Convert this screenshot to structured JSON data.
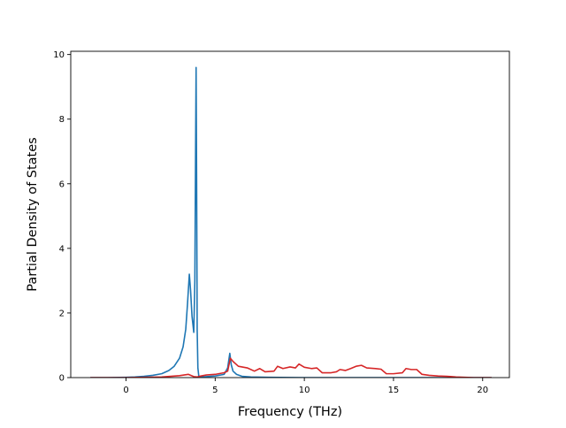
{
  "chart_data": {
    "type": "line",
    "title": "",
    "xlabel": "Frequency (THz)",
    "ylabel": "Partial Density of States",
    "xlim": [
      -3.1,
      21.5
    ],
    "ylim": [
      0,
      10.1
    ],
    "xticks": [
      0,
      5,
      10,
      15,
      20
    ],
    "yticks": [
      0,
      2,
      4,
      6,
      8,
      10
    ],
    "grid": false,
    "legend": "none",
    "series": [
      {
        "color": "#1f77b4",
        "x": [
          -2.0,
          -1.0,
          0.0,
          0.5,
          1.0,
          1.5,
          2.0,
          2.4,
          2.7,
          3.0,
          3.2,
          3.35,
          3.45,
          3.55,
          3.62,
          3.7,
          3.8,
          3.86,
          3.9,
          3.93,
          3.96,
          3.99,
          4.03,
          4.08,
          4.2,
          4.5,
          5.0,
          5.5,
          5.7,
          5.82,
          5.9,
          6.0,
          6.2,
          6.5,
          7.0,
          8.0,
          10.0,
          12.0,
          14.0,
          16.0,
          18.0,
          20.0,
          20.5
        ],
        "y": [
          0.0,
          0.0,
          0.01,
          0.02,
          0.04,
          0.07,
          0.12,
          0.22,
          0.35,
          0.6,
          0.95,
          1.5,
          2.3,
          3.2,
          2.7,
          1.9,
          1.4,
          3.0,
          7.0,
          9.6,
          6.0,
          1.5,
          0.3,
          0.05,
          0.02,
          0.03,
          0.05,
          0.1,
          0.3,
          0.75,
          0.4,
          0.2,
          0.1,
          0.04,
          0.02,
          0.01,
          0.0,
          0.0,
          0.0,
          0.0,
          0.0,
          0.0,
          0.0
        ]
      },
      {
        "color": "#d62728",
        "x": [
          -2.0,
          -1.0,
          0.0,
          1.0,
          2.0,
          2.5,
          3.0,
          3.5,
          3.8,
          4.0,
          4.2,
          4.5,
          5.0,
          5.5,
          5.7,
          5.85,
          6.0,
          6.3,
          6.8,
          7.2,
          7.5,
          7.8,
          8.3,
          8.5,
          8.8,
          9.2,
          9.5,
          9.7,
          10.0,
          10.4,
          10.7,
          11.0,
          11.5,
          11.8,
          12.0,
          12.3,
          12.6,
          12.9,
          13.2,
          13.5,
          14.0,
          14.3,
          14.6,
          15.0,
          15.5,
          15.7,
          16.0,
          16.3,
          16.6,
          17.0,
          17.5,
          18.0,
          18.5,
          19.0,
          19.5,
          20.0,
          20.5
        ],
        "y": [
          0.0,
          0.0,
          0.0,
          0.01,
          0.02,
          0.04,
          0.06,
          0.1,
          0.03,
          0.02,
          0.05,
          0.08,
          0.1,
          0.15,
          0.2,
          0.6,
          0.5,
          0.35,
          0.3,
          0.2,
          0.28,
          0.18,
          0.2,
          0.35,
          0.28,
          0.33,
          0.3,
          0.42,
          0.32,
          0.28,
          0.3,
          0.15,
          0.15,
          0.18,
          0.25,
          0.22,
          0.28,
          0.35,
          0.38,
          0.3,
          0.28,
          0.26,
          0.12,
          0.12,
          0.15,
          0.28,
          0.25,
          0.25,
          0.1,
          0.07,
          0.05,
          0.04,
          0.02,
          0.01,
          0.0,
          0.0,
          0.0
        ]
      }
    ]
  }
}
